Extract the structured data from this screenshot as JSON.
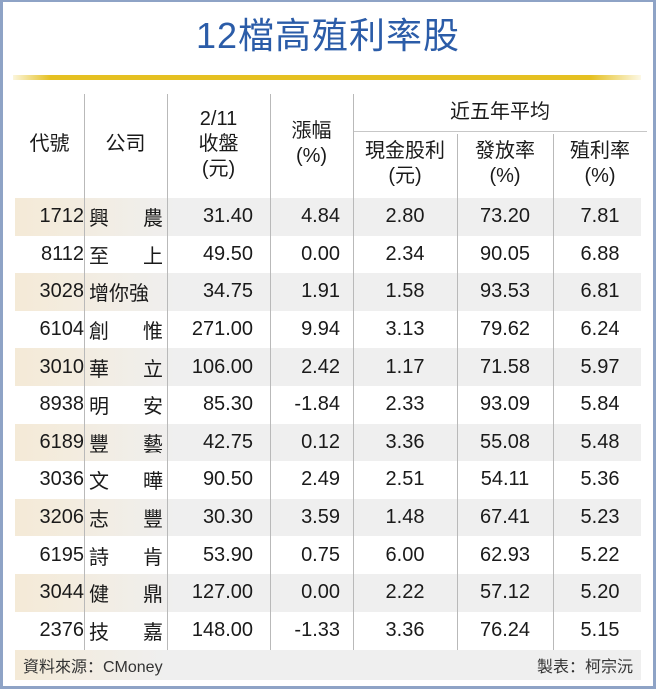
{
  "title": "12檔高殖利率股",
  "colors": {
    "title": "#2b5ca8",
    "accent_bar": "#e5c021",
    "frame": "#8ea3c6",
    "shade": "#efefef",
    "shade_left": "#f4ead7"
  },
  "chart_data": {
    "type": "table",
    "title": "12檔高殖利率股",
    "group_header": "近五年平均",
    "columns": [
      "代號",
      "公司",
      "2/11 收盤(元)",
      "漲幅(%)",
      "現金股利(元)",
      "發放率(%)",
      "殖利率(%)"
    ],
    "rows": [
      [
        "1712",
        "興農",
        31.4,
        4.84,
        2.8,
        73.2,
        7.81
      ],
      [
        "8112",
        "至上",
        49.5,
        0.0,
        2.34,
        90.05,
        6.88
      ],
      [
        "3028",
        "增你強",
        34.75,
        1.91,
        1.58,
        93.53,
        6.81
      ],
      [
        "6104",
        "創惟",
        271.0,
        9.94,
        3.13,
        79.62,
        6.24
      ],
      [
        "3010",
        "華立",
        106.0,
        2.42,
        1.17,
        71.58,
        5.97
      ],
      [
        "8938",
        "明安",
        85.3,
        -1.84,
        2.33,
        93.09,
        5.84
      ],
      [
        "6189",
        "豐藝",
        42.75,
        0.12,
        3.36,
        55.08,
        5.48
      ],
      [
        "3036",
        "文曄",
        90.5,
        2.49,
        2.51,
        54.11,
        5.36
      ],
      [
        "3206",
        "志豐",
        30.3,
        3.59,
        1.48,
        67.41,
        5.23
      ],
      [
        "6195",
        "詩肯",
        53.9,
        0.75,
        6.0,
        62.93,
        5.22
      ],
      [
        "3044",
        "健鼎",
        127.0,
        0.0,
        2.22,
        57.12,
        5.2
      ],
      [
        "2376",
        "技嘉",
        148.0,
        -1.33,
        3.36,
        76.24,
        5.15
      ]
    ],
    "source": "資料來源：CMoney",
    "credit": "製表：柯宗沅"
  },
  "header": {
    "code": "代號",
    "company": "公司",
    "close_l1": "2/11",
    "close_l2": "收盤",
    "close_l3": "(元)",
    "change_l1": "漲幅",
    "change_l2": "(%)",
    "group": "近五年平均",
    "dividend_l1": "現金股利",
    "dividend_l2": "(元)",
    "payout_l1": "發放率",
    "payout_l2": "(%)",
    "yield_l1": "殖利率",
    "yield_l2": "(%)"
  },
  "rows": [
    {
      "code": "1712",
      "n1": "興",
      "n2": "農",
      "close": "31.40",
      "chg": "4.84",
      "div": "2.80",
      "pay": "73.20",
      "yld": "7.81"
    },
    {
      "code": "8112",
      "n1": "至",
      "n2": "上",
      "close": "49.50",
      "chg": "0.00",
      "div": "2.34",
      "pay": "90.05",
      "yld": "6.88"
    },
    {
      "code": "3028",
      "n1": "增你強",
      "n2": "",
      "close": "34.75",
      "chg": "1.91",
      "div": "1.58",
      "pay": "93.53",
      "yld": "6.81"
    },
    {
      "code": "6104",
      "n1": "創",
      "n2": "惟",
      "close": "271.00",
      "chg": "9.94",
      "div": "3.13",
      "pay": "79.62",
      "yld": "6.24"
    },
    {
      "code": "3010",
      "n1": "華",
      "n2": "立",
      "close": "106.00",
      "chg": "2.42",
      "div": "1.17",
      "pay": "71.58",
      "yld": "5.97"
    },
    {
      "code": "8938",
      "n1": "明",
      "n2": "安",
      "close": "85.30",
      "chg": "-1.84",
      "div": "2.33",
      "pay": "93.09",
      "yld": "5.84"
    },
    {
      "code": "6189",
      "n1": "豐",
      "n2": "藝",
      "close": "42.75",
      "chg": "0.12",
      "div": "3.36",
      "pay": "55.08",
      "yld": "5.48"
    },
    {
      "code": "3036",
      "n1": "文",
      "n2": "曄",
      "close": "90.50",
      "chg": "2.49",
      "div": "2.51",
      "pay": "54.11",
      "yld": "5.36"
    },
    {
      "code": "3206",
      "n1": "志",
      "n2": "豐",
      "close": "30.30",
      "chg": "3.59",
      "div": "1.48",
      "pay": "67.41",
      "yld": "5.23"
    },
    {
      "code": "6195",
      "n1": "詩",
      "n2": "肯",
      "close": "53.90",
      "chg": "0.75",
      "div": "6.00",
      "pay": "62.93",
      "yld": "5.22"
    },
    {
      "code": "3044",
      "n1": "健",
      "n2": "鼎",
      "close": "127.00",
      "chg": "0.00",
      "div": "2.22",
      "pay": "57.12",
      "yld": "5.20"
    },
    {
      "code": "2376",
      "n1": "技",
      "n2": "嘉",
      "close": "148.00",
      "chg": "-1.33",
      "div": "3.36",
      "pay": "76.24",
      "yld": "5.15"
    }
  ],
  "footer": {
    "source": "資料來源：CMoney",
    "credit": "製表：柯宗沅"
  }
}
